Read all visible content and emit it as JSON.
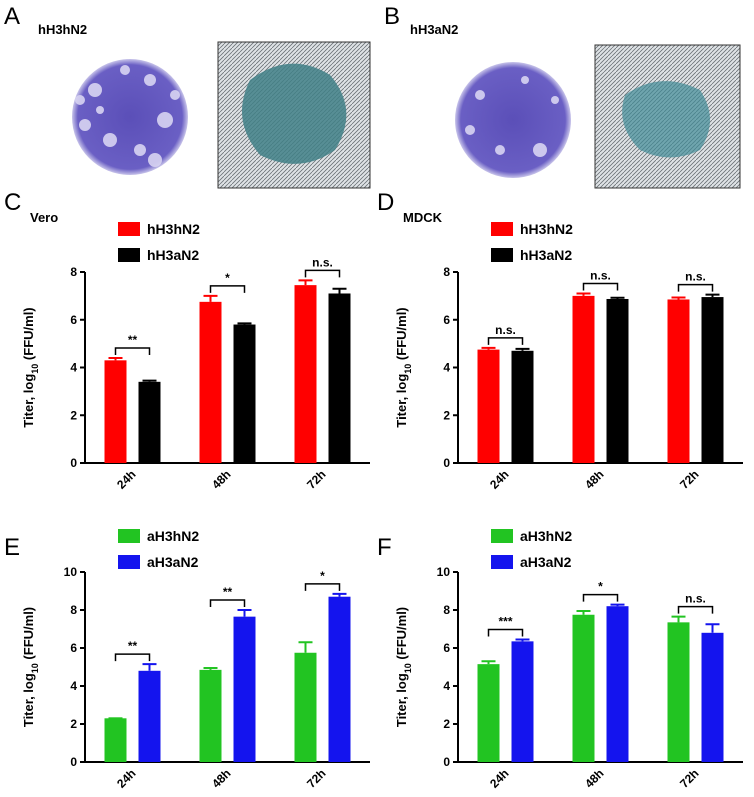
{
  "panels": [
    {
      "letter": "A",
      "label": "hH3hN2"
    },
    {
      "letter": "B",
      "label": "hH3aN2"
    }
  ],
  "chart_data": [
    {
      "type": "bar",
      "panel": "C",
      "subtitle": "Vero",
      "y_label": [
        "Titer, log",
        "10",
        " (FFU/ml)"
      ],
      "categories": [
        "24h",
        "48h",
        "72h"
      ],
      "ylim": [
        0,
        8
      ],
      "yticks": [
        0,
        2,
        4,
        6,
        8
      ],
      "series": [
        {
          "name": "hH3hN2",
          "color": "#ff0000",
          "values": [
            4.3,
            6.75,
            7.45
          ],
          "errors": [
            0.1,
            0.25,
            0.2
          ]
        },
        {
          "name": "hH3aN2",
          "color": "#000000",
          "values": [
            3.4,
            5.8,
            7.1
          ],
          "errors": [
            0.05,
            0.05,
            0.2
          ]
        }
      ],
      "significance": [
        "**",
        "*",
        "n.s."
      ]
    },
    {
      "type": "bar",
      "panel": "D",
      "subtitle": "MDCK",
      "y_label": [
        "Titer, log",
        "10",
        " (FFU/ml)"
      ],
      "categories": [
        "24h",
        "48h",
        "72h"
      ],
      "ylim": [
        0,
        8
      ],
      "yticks": [
        0,
        2,
        4,
        6,
        8
      ],
      "series": [
        {
          "name": "hH3hN2",
          "color": "#ff0000",
          "values": [
            4.75,
            7.0,
            6.85
          ],
          "errors": [
            0.07,
            0.1,
            0.08
          ]
        },
        {
          "name": "hH3aN2",
          "color": "#000000",
          "values": [
            4.7,
            6.87,
            6.95
          ],
          "errors": [
            0.08,
            0.05,
            0.1
          ]
        }
      ],
      "significance": [
        "n.s.",
        "n.s.",
        "n.s."
      ]
    },
    {
      "type": "bar",
      "panel": "E",
      "y_label": [
        "Titer, log",
        "10",
        " (FFU/ml)"
      ],
      "categories": [
        "24h",
        "48h",
        "72h"
      ],
      "ylim": [
        0,
        10
      ],
      "yticks": [
        0,
        2,
        4,
        6,
        8,
        10
      ],
      "series": [
        {
          "name": "aH3hN2",
          "color": "#22c422",
          "values": [
            2.3,
            4.85,
            5.75
          ],
          "errors": [
            0,
            0.1,
            0.55
          ]
        },
        {
          "name": "aH3aN2",
          "color": "#1414ee",
          "values": [
            4.8,
            7.65,
            8.7
          ],
          "errors": [
            0.35,
            0.35,
            0.15
          ]
        }
      ],
      "significance": [
        "**",
        "**",
        "*"
      ]
    },
    {
      "type": "bar",
      "panel": "F",
      "y_label": [
        "Titer, log",
        "10",
        " (FFU/ml)"
      ],
      "categories": [
        "24h",
        "48h",
        "72h"
      ],
      "ylim": [
        0,
        10
      ],
      "yticks": [
        0,
        2,
        4,
        6,
        8,
        10
      ],
      "series": [
        {
          "name": "aH3hN2",
          "color": "#22c422",
          "values": [
            5.15,
            7.75,
            7.35
          ],
          "errors": [
            0.15,
            0.2,
            0.3
          ]
        },
        {
          "name": "aH3aN2",
          "color": "#1414ee",
          "values": [
            6.35,
            8.2,
            6.8
          ],
          "errors": [
            0.1,
            0.08,
            0.45
          ]
        }
      ],
      "significance": [
        "***",
        "*",
        "n.s."
      ]
    }
  ]
}
